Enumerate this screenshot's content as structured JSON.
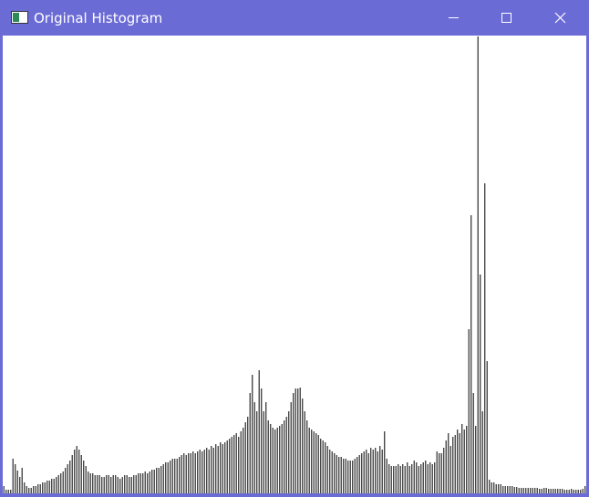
{
  "window": {
    "title": "Original Histogram"
  },
  "chart_data": {
    "type": "bar",
    "color": "#333333",
    "values": [
      8,
      4,
      4,
      4,
      38,
      32,
      25,
      18,
      28,
      12,
      8,
      6,
      6,
      8,
      8,
      10,
      10,
      12,
      12,
      14,
      14,
      16,
      16,
      18,
      20,
      22,
      24,
      28,
      32,
      36,
      42,
      48,
      52,
      48,
      42,
      36,
      30,
      24,
      22,
      22,
      20,
      20,
      20,
      18,
      18,
      20,
      20,
      18,
      20,
      20,
      18,
      16,
      18,
      20,
      20,
      18,
      18,
      20,
      20,
      22,
      22,
      22,
      24,
      22,
      24,
      26,
      26,
      28,
      28,
      30,
      32,
      34,
      34,
      36,
      38,
      38,
      38,
      40,
      42,
      44,
      42,
      44,
      44,
      46,
      44,
      46,
      48,
      46,
      48,
      50,
      48,
      52,
      50,
      54,
      52,
      56,
      54,
      56,
      58,
      60,
      62,
      64,
      66,
      62,
      68,
      72,
      78,
      84,
      110,
      130,
      100,
      90,
      135,
      115,
      90,
      100,
      80,
      76,
      72,
      70,
      72,
      74,
      76,
      80,
      84,
      90,
      100,
      110,
      115,
      115,
      116,
      104,
      90,
      80,
      72,
      70,
      68,
      66,
      64,
      60,
      58,
      56,
      52,
      48,
      46,
      44,
      42,
      40,
      40,
      38,
      38,
      36,
      36,
      36,
      38,
      40,
      42,
      44,
      46,
      48,
      44,
      50,
      48,
      50,
      46,
      52,
      48,
      68,
      38,
      32,
      30,
      30,
      30,
      32,
      30,
      32,
      30,
      34,
      30,
      32,
      36,
      34,
      30,
      32,
      34,
      36,
      32,
      34,
      32,
      34,
      46,
      44,
      44,
      50,
      58,
      66,
      52,
      62,
      64,
      70,
      66,
      76,
      70,
      74,
      180,
      305,
      110,
      74,
      501,
      240,
      90,
      340,
      145,
      15,
      12,
      12,
      10,
      10,
      10,
      8,
      8,
      8,
      8,
      8,
      7,
      7,
      6,
      6,
      6,
      6,
      6,
      6,
      6,
      6,
      6,
      5,
      5,
      6,
      6,
      5,
      5,
      5,
      5,
      5,
      5,
      5,
      4,
      4,
      4,
      5,
      4,
      4,
      4,
      4,
      5,
      8
    ]
  }
}
